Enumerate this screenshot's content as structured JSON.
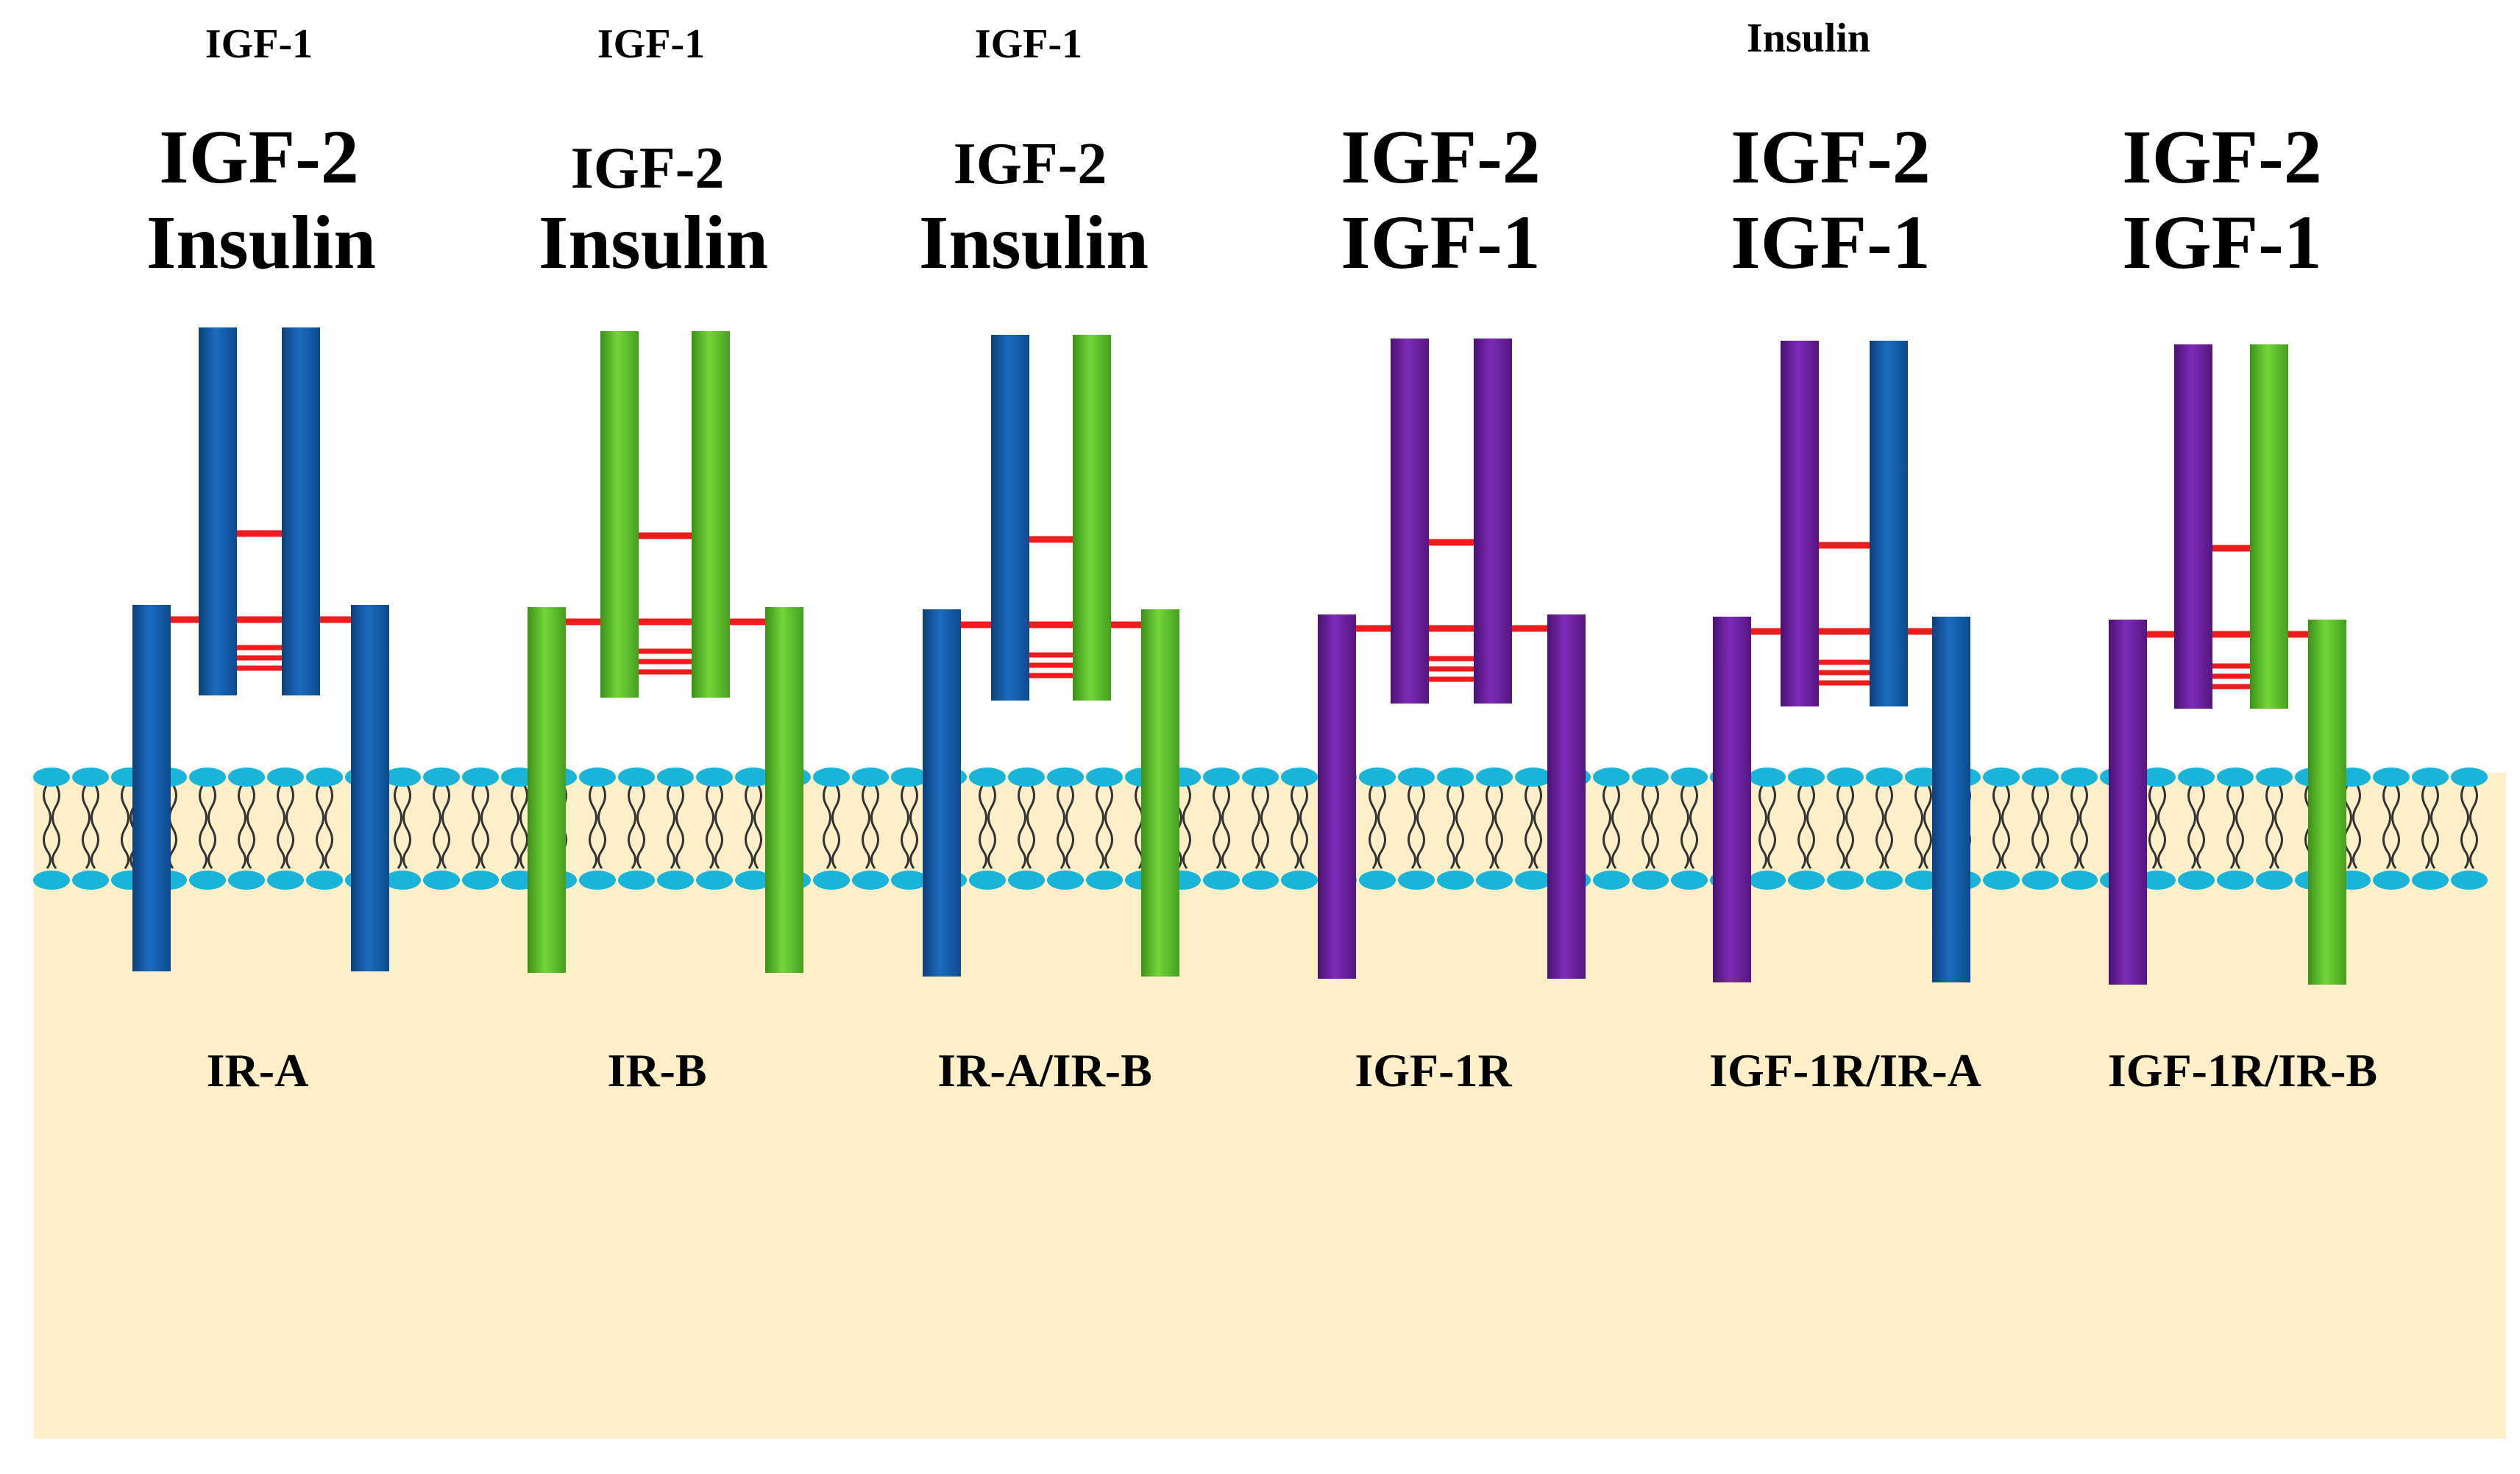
{
  "colors": {
    "ir_a": "#1560ad",
    "ir_b": "#5bc12a",
    "igf1r": "#6a1fa0",
    "bond": "#ee1c1c",
    "lipid_head": "#1ab4d9",
    "cytoplasm": "#fdf0c8",
    "background": "#ffffff"
  },
  "receptors": [
    {
      "id": "ir-a",
      "name": "IR-A",
      "top_ligand": "IGF-1",
      "ligands": [
        "IGF-2",
        "Insulin"
      ],
      "left_chain": "ir_a",
      "right_chain": "ir_a"
    },
    {
      "id": "ir-b",
      "name": "IR-B",
      "top_ligand": "IGF-1",
      "ligands": [
        "IGF-2",
        "Insulin"
      ],
      "left_chain": "ir_b",
      "right_chain": "ir_b"
    },
    {
      "id": "ir-a-ir-b",
      "name": "IR-A/IR-B",
      "top_ligand": "IGF-1",
      "ligands": [
        "IGF-2",
        "Insulin"
      ],
      "left_chain": "ir_a",
      "right_chain": "ir_b"
    },
    {
      "id": "igf-1r",
      "name": "IGF-1R",
      "top_ligand": "",
      "ligands": [
        "IGF-2",
        "IGF-1"
      ],
      "left_chain": "igf1r",
      "right_chain": "igf1r"
    },
    {
      "id": "igf-1r-ir-a",
      "name": "IGF-1R/IR-A",
      "top_ligand": "Insulin",
      "ligands": [
        "IGF-2",
        "IGF-1"
      ],
      "left_chain": "igf1r",
      "right_chain": "ir_a"
    },
    {
      "id": "igf-1r-ir-b",
      "name": "IGF-1R/IR-B",
      "top_ligand": "",
      "ligands": [
        "IGF-2",
        "IGF-1"
      ],
      "left_chain": "igf1r",
      "right_chain": "ir_b"
    }
  ]
}
